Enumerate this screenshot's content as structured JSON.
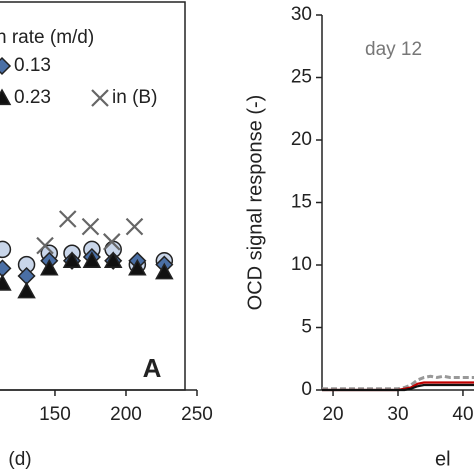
{
  "chart_data": [
    {
      "type": "scatter",
      "legend_title": "n rate (m/d)",
      "xlabel": "(d)",
      "annotation": "A",
      "xlim": [
        111.3,
        250
      ],
      "ylim": [
        0,
        1
      ],
      "xticks": [
        150,
        200,
        250
      ],
      "series": [
        {
          "marker": "circle",
          "color": "#c9d6ea",
          "x": [
            113,
            130,
            146,
            162,
            176,
            191,
            208,
            227
          ],
          "values": [
            0.37,
            0.33,
            0.36,
            0.36,
            0.37,
            0.37,
            0.33,
            0.34
          ]
        },
        {
          "name": "0.13",
          "marker": "diamond",
          "color": "#4a6fa5",
          "x": [
            113,
            130,
            146,
            162,
            176,
            191,
            208,
            227
          ],
          "values": [
            0.32,
            0.3,
            0.34,
            0.34,
            0.35,
            0.34,
            0.34,
            0.33
          ]
        },
        {
          "name": "0.23",
          "marker": "triangle",
          "color": "#111111",
          "x": [
            113,
            130,
            146,
            162,
            176,
            191,
            208,
            227
          ],
          "values": [
            0.28,
            0.26,
            0.32,
            0.34,
            0.34,
            0.34,
            0.32,
            0.31
          ]
        },
        {
          "name": "in (B)",
          "marker": "cross",
          "color": "#666666",
          "x": [
            143,
            159,
            175,
            190,
            206
          ],
          "values": [
            0.38,
            0.45,
            0.43,
            0.39,
            0.43
          ]
        }
      ]
    },
    {
      "type": "line",
      "ylabel": "OCD signal response (-)",
      "xlabel": "el",
      "annotation": "day 12",
      "xlim": [
        18.3,
        41.7
      ],
      "ylim": [
        0,
        30
      ],
      "xticks": [
        20,
        30,
        40
      ],
      "yticks": [
        0,
        5,
        10,
        15,
        20,
        25,
        30
      ],
      "series": [
        {
          "style": "dashed",
          "color": "#999999",
          "x": [
            18.3,
            30,
            31,
            32,
            33,
            34,
            35,
            36,
            37,
            38,
            39,
            40,
            41.7
          ],
          "values": [
            0.1,
            0.1,
            0.2,
            0.4,
            0.8,
            1.0,
            1.1,
            1.0,
            1.1,
            1.0,
            1.0,
            1.0,
            1.0
          ]
        },
        {
          "style": "solid",
          "color": "#c00000",
          "x": [
            18.3,
            30,
            31,
            32,
            33,
            34,
            35,
            36,
            37,
            38,
            39,
            40,
            41.7
          ],
          "values": [
            0,
            0,
            0.1,
            0.2,
            0.5,
            0.6,
            0.6,
            0.6,
            0.6,
            0.6,
            0.6,
            0.6,
            0.6
          ]
        },
        {
          "style": "solid",
          "color": "#111111",
          "x": [
            18.3,
            30,
            31,
            32,
            33,
            34,
            35,
            36,
            37,
            38,
            39,
            40,
            41.7
          ],
          "values": [
            0,
            0,
            0,
            0.1,
            0.3,
            0.4,
            0.4,
            0.4,
            0.4,
            0.4,
            0.4,
            0.4,
            0.4
          ]
        }
      ]
    }
  ]
}
